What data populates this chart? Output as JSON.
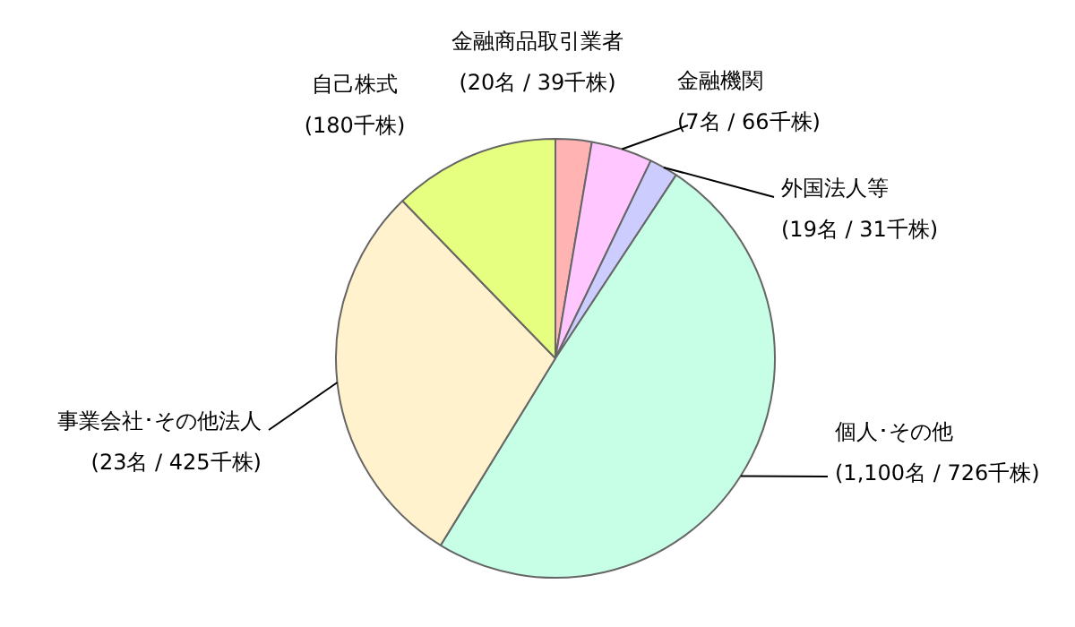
{
  "chart_data": {
    "type": "pie",
    "categories": [
      "金融商品取引業者",
      "金融機関",
      "外国法人等",
      "個人･その他",
      "事業会社･その他法人",
      "自己株式"
    ],
    "values": [
      39,
      66,
      31,
      726,
      425,
      180
    ],
    "colors": [
      "#ffb3b3",
      "#ffc6ff",
      "#ccccff",
      "#c6ffe6",
      "#fff2cc",
      "#e6ff80"
    ],
    "value_labels": [
      "(20名 / 39千株)",
      "(7名 / 66千株)",
      "(19名 / 31千株)",
      "(1,100名 / 726千株)",
      "(23名 / 425千株)",
      "(180千株)"
    ]
  }
}
